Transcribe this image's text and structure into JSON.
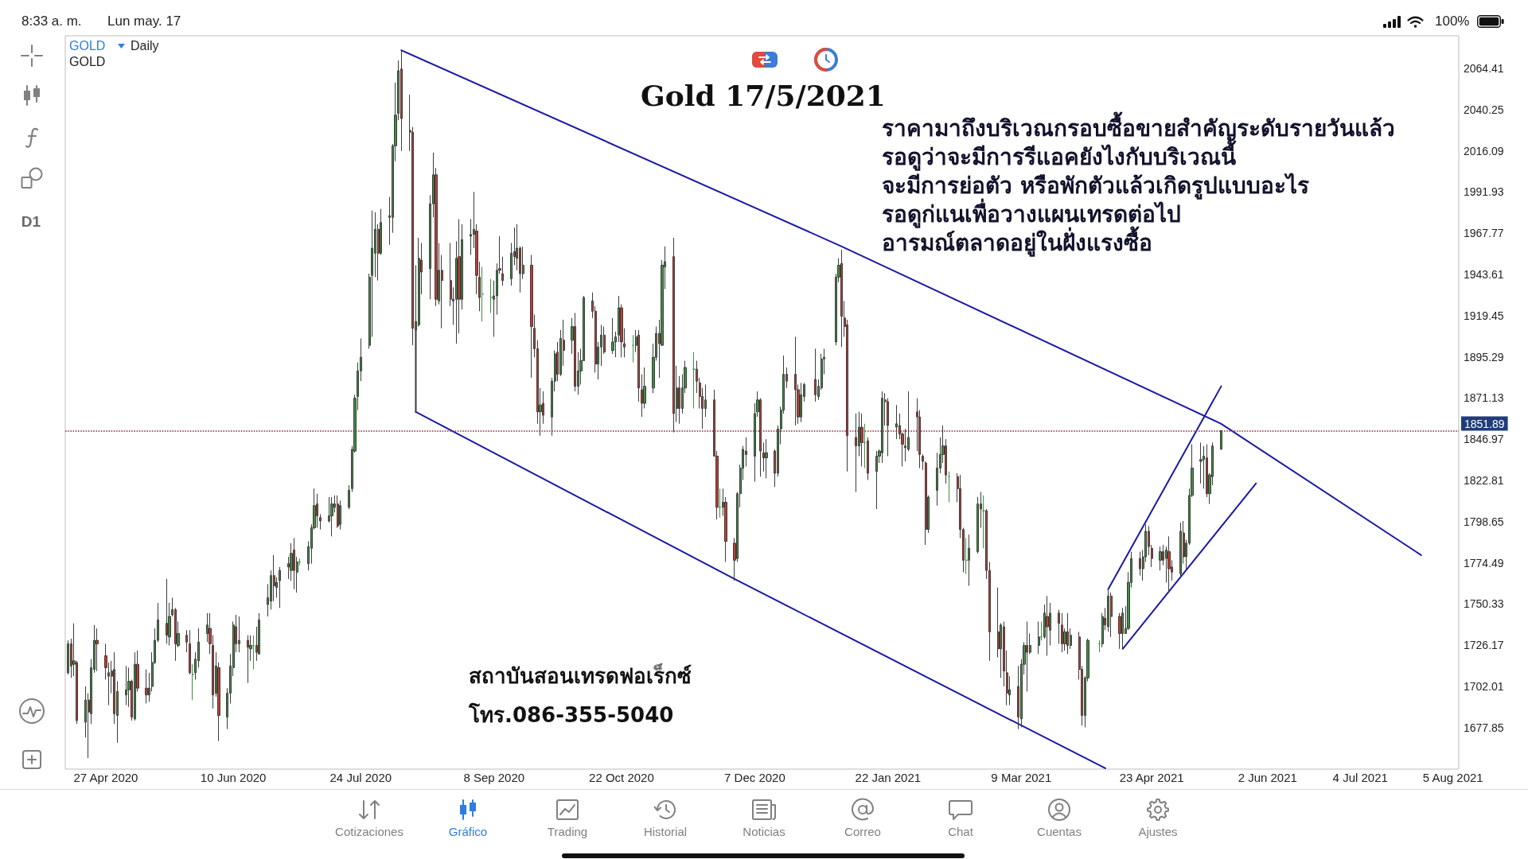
{
  "chart_data": {
    "type": "candlestick",
    "title": "Gold 17/5/2021",
    "annotations": [
      "8:33 a. m.",
      "Lun may. 17",
      "100%",
      "GOLD",
      "Daily",
      "GOLD",
      "D1",
      "ราคามาถึงบริเวณกรอบซื้อขายสำคัญระดับรายวันแล้ว",
      "รอดูว่าจะมีการรีแอคยังไงกับบริเวณนี้",
      "จะมีการย่อตัว หรือพักตัวแล้วเกิดรูปแบบอะไร",
      "รอดูก่แนเพื่อวางแผนเทรดต่อไป",
      "อารมณ์ตลาดอยู่ในฝั่งแรงซื้อ",
      "สถาบันสอนเทรดฟอเร็กซ์",
      "โทร.086-355-5040",
      "Cotizaciones",
      "Gráfico",
      "Trading",
      "Historial",
      "Noticias",
      "Correo",
      "Chat",
      "Cuentas",
      "Ajustes"
    ],
    "x": [
      "2020-04-14",
      "2020-04-15",
      "2020-04-16",
      "2020-04-17",
      "2020-04-20",
      "2020-04-21",
      "2020-04-22",
      "2020-04-23",
      "2020-04-24",
      "2020-04-27",
      "2020-04-28",
      "2020-04-29",
      "2020-04-30",
      "2020-05-01",
      "2020-05-04",
      "2020-05-05",
      "2020-05-06",
      "2020-05-07",
      "2020-05-08",
      "2020-05-11",
      "2020-05-12",
      "2020-05-13",
      "2020-05-14",
      "2020-05-15",
      "2020-05-18",
      "2020-05-19",
      "2020-05-20",
      "2020-05-21",
      "2020-05-22",
      "2020-05-25",
      "2020-05-26",
      "2020-05-27",
      "2020-05-28",
      "2020-05-29",
      "2020-06-01",
      "2020-06-02",
      "2020-06-03",
      "2020-06-04",
      "2020-06-05",
      "2020-06-08",
      "2020-06-09",
      "2020-06-10",
      "2020-06-11",
      "2020-06-12",
      "2020-06-15",
      "2020-06-16",
      "2020-06-17",
      "2020-06-18",
      "2020-06-19",
      "2020-06-22",
      "2020-06-23",
      "2020-06-24",
      "2020-06-25",
      "2020-06-26",
      "2020-06-29",
      "2020-06-30",
      "2020-07-01",
      "2020-07-02",
      "2020-07-03",
      "2020-07-06",
      "2020-07-07",
      "2020-07-08",
      "2020-07-09",
      "2020-07-10",
      "2020-07-13",
      "2020-07-14",
      "2020-07-15",
      "2020-07-16",
      "2020-07-17",
      "2020-07-20",
      "2020-07-21",
      "2020-07-22",
      "2020-07-23",
      "2020-07-24",
      "2020-07-27",
      "2020-07-28",
      "2020-07-29",
      "2020-07-30",
      "2020-07-31",
      "2020-08-03",
      "2020-08-04",
      "2020-08-05",
      "2020-08-06",
      "2020-08-07",
      "2020-08-10",
      "2020-08-11",
      "2020-08-12",
      "2020-08-13",
      "2020-08-14",
      "2020-08-17",
      "2020-08-18",
      "2020-08-19",
      "2020-08-20",
      "2020-08-21",
      "2020-08-24",
      "2020-08-25",
      "2020-08-26",
      "2020-08-27",
      "2020-08-28",
      "2020-08-31",
      "2020-09-01",
      "2020-09-02",
      "2020-09-03",
      "2020-09-04",
      "2020-09-07",
      "2020-09-08",
      "2020-09-09",
      "2020-09-10",
      "2020-09-11",
      "2020-09-14",
      "2020-09-15",
      "2020-09-16",
      "2020-09-17",
      "2020-09-18",
      "2020-09-21",
      "2020-09-22",
      "2020-09-23",
      "2020-09-24",
      "2020-09-25",
      "2020-09-28",
      "2020-09-29",
      "2020-09-30",
      "2020-10-01",
      "2020-10-02",
      "2020-10-05",
      "2020-10-06",
      "2020-10-07",
      "2020-10-08",
      "2020-10-09",
      "2020-10-12",
      "2020-10-13",
      "2020-10-14",
      "2020-10-15",
      "2020-10-16",
      "2020-10-19",
      "2020-10-20",
      "2020-10-21",
      "2020-10-22",
      "2020-10-23",
      "2020-10-26",
      "2020-10-27",
      "2020-10-28",
      "2020-10-29",
      "2020-10-30",
      "2020-11-02",
      "2020-11-03",
      "2020-11-04",
      "2020-11-05",
      "2020-11-06",
      "2020-11-09",
      "2020-11-10",
      "2020-11-11",
      "2020-11-12",
      "2020-11-13",
      "2020-11-16",
      "2020-11-17",
      "2020-11-18",
      "2020-11-19",
      "2020-11-20",
      "2020-11-23",
      "2020-11-24",
      "2020-11-25",
      "2020-11-26",
      "2020-11-27",
      "2020-11-30",
      "2020-12-01",
      "2020-12-02",
      "2020-12-03",
      "2020-12-04",
      "2020-12-07",
      "2020-12-08",
      "2020-12-09",
      "2020-12-10",
      "2020-12-11",
      "2020-12-14",
      "2020-12-15",
      "2020-12-16",
      "2020-12-17",
      "2020-12-18",
      "2020-12-21",
      "2020-12-22",
      "2020-12-23",
      "2020-12-24",
      "2020-12-28",
      "2020-12-29",
      "2020-12-30",
      "2020-12-31",
      "2021-01-04",
      "2021-01-05",
      "2021-01-06",
      "2021-01-07",
      "2021-01-08",
      "2021-01-11",
      "2021-01-12",
      "2021-01-13",
      "2021-01-14",
      "2021-01-15",
      "2021-01-18",
      "2021-01-19",
      "2021-01-20",
      "2021-01-21",
      "2021-01-22",
      "2021-01-25",
      "2021-01-26",
      "2021-01-27",
      "2021-01-28",
      "2021-01-29",
      "2021-02-01",
      "2021-02-02",
      "2021-02-03",
      "2021-02-04",
      "2021-02-05",
      "2021-02-08",
      "2021-02-09",
      "2021-02-10",
      "2021-02-11",
      "2021-02-12",
      "2021-02-15",
      "2021-02-16",
      "2021-02-17",
      "2021-02-18",
      "2021-02-19",
      "2021-02-22",
      "2021-02-23",
      "2021-02-24",
      "2021-02-25",
      "2021-02-26",
      "2021-03-01",
      "2021-03-02",
      "2021-03-03",
      "2021-03-04",
      "2021-03-05",
      "2021-03-08",
      "2021-03-09",
      "2021-03-10",
      "2021-03-11",
      "2021-03-12",
      "2021-03-15",
      "2021-03-16",
      "2021-03-17",
      "2021-03-18",
      "2021-03-19",
      "2021-03-22",
      "2021-03-23",
      "2021-03-24",
      "2021-03-25",
      "2021-03-26",
      "2021-03-29",
      "2021-03-30",
      "2021-03-31",
      "2021-04-01",
      "2021-04-05",
      "2021-04-06",
      "2021-04-07",
      "2021-04-08",
      "2021-04-09",
      "2021-04-12",
      "2021-04-13",
      "2021-04-14",
      "2021-04-15",
      "2021-04-16",
      "2021-04-19",
      "2021-04-20",
      "2021-04-21",
      "2021-04-22",
      "2021-04-23",
      "2021-04-26",
      "2021-04-27",
      "2021-04-28",
      "2021-04-29",
      "2021-04-30",
      "2021-05-03",
      "2021-05-04",
      "2021-05-05",
      "2021-05-06",
      "2021-05-07",
      "2021-05-10",
      "2021-05-11",
      "2021-05-12",
      "2021-05-13",
      "2021-05-14",
      "2021-05-17"
    ],
    "ohlc": [
      [
        1710,
        1729,
        1709,
        1727
      ],
      [
        1727,
        1730,
        1707,
        1714
      ],
      [
        1715,
        1739,
        1708,
        1717
      ],
      [
        1716,
        1717,
        1680,
        1682
      ],
      [
        1681,
        1702,
        1672,
        1694
      ],
      [
        1694,
        1698,
        1660,
        1687
      ],
      [
        1686,
        1718,
        1680,
        1713
      ],
      [
        1712,
        1738,
        1710,
        1729
      ],
      [
        1729,
        1736,
        1711,
        1727
      ],
      [
        1720,
        1727,
        1706,
        1713
      ],
      [
        1710,
        1716,
        1691,
        1708
      ],
      [
        1708,
        1717,
        1698,
        1711
      ],
      [
        1712,
        1722,
        1680,
        1686
      ],
      [
        1685,
        1705,
        1669,
        1699
      ],
      [
        1697,
        1714,
        1691,
        1700
      ],
      [
        1700,
        1713,
        1690,
        1705
      ],
      [
        1705,
        1706,
        1682,
        1684
      ],
      [
        1683,
        1722,
        1682,
        1715
      ],
      [
        1715,
        1723,
        1699,
        1701
      ],
      [
        1701,
        1712,
        1692,
        1697
      ],
      [
        1697,
        1710,
        1693,
        1701
      ],
      [
        1702,
        1722,
        1699,
        1716
      ],
      [
        1716,
        1736,
        1715,
        1729
      ],
      [
        1729,
        1751,
        1728,
        1741
      ],
      [
        1739,
        1765,
        1727,
        1732
      ],
      [
        1731,
        1751,
        1726,
        1743
      ],
      [
        1744,
        1754,
        1743,
        1747
      ],
      [
        1747,
        1748,
        1717,
        1727
      ],
      [
        1726,
        1740,
        1725,
        1733
      ],
      [
        1732,
        1735,
        1722,
        1728
      ],
      [
        1727,
        1735,
        1709,
        1710
      ],
      [
        1709,
        1715,
        1694,
        1709
      ],
      [
        1710,
        1722,
        1706,
        1718
      ],
      [
        1717,
        1736,
        1713,
        1728
      ],
      [
        1733,
        1745,
        1728,
        1738
      ],
      [
        1736,
        1745,
        1721,
        1727
      ],
      [
        1726,
        1732,
        1689,
        1697
      ],
      [
        1698,
        1722,
        1696,
        1714
      ],
      [
        1713,
        1716,
        1670,
        1685
      ],
      [
        1684,
        1701,
        1677,
        1698
      ],
      [
        1698,
        1721,
        1692,
        1714
      ],
      [
        1713,
        1740,
        1708,
        1738
      ],
      [
        1737,
        1744,
        1722,
        1727
      ],
      [
        1727,
        1743,
        1722,
        1729
      ],
      [
        1729,
        1732,
        1704,
        1725
      ],
      [
        1724,
        1732,
        1717,
        1726
      ],
      [
        1726,
        1732,
        1712,
        1726
      ],
      [
        1726,
        1737,
        1717,
        1722
      ],
      [
        1721,
        1745,
        1721,
        1741
      ],
      [
        1750,
        1762,
        1743,
        1754
      ],
      [
        1752,
        1770,
        1747,
        1767
      ],
      [
        1767,
        1779,
        1752,
        1761
      ],
      [
        1760,
        1766,
        1754,
        1763
      ],
      [
        1764,
        1772,
        1748,
        1770
      ],
      [
        1774,
        1778,
        1765,
        1772
      ],
      [
        1770,
        1786,
        1764,
        1780
      ],
      [
        1782,
        1789,
        1759,
        1770
      ],
      [
        1769,
        1778,
        1757,
        1775
      ],
      [
        1775,
        1777,
        1773,
        1775
      ],
      [
        1774,
        1787,
        1770,
        1784
      ],
      [
        1783,
        1797,
        1774,
        1795
      ],
      [
        1795,
        1818,
        1794,
        1808
      ],
      [
        1809,
        1815,
        1795,
        1802
      ],
      [
        1801,
        1803,
        1794,
        1799
      ],
      [
        1799,
        1813,
        1798,
        1802
      ],
      [
        1802,
        1813,
        1790,
        1809
      ],
      [
        1807,
        1814,
        1804,
        1809
      ],
      [
        1809,
        1814,
        1795,
        1796
      ],
      [
        1797,
        1811,
        1794,
        1808
      ],
      [
        1807,
        1820,
        1806,
        1817
      ],
      [
        1818,
        1843,
        1816,
        1841
      ],
      [
        1840,
        1873,
        1839,
        1871
      ],
      [
        1872,
        1892,
        1864,
        1887
      ],
      [
        1887,
        1906,
        1881,
        1895
      ],
      [
        1902,
        1944,
        1900,
        1942
      ],
      [
        1943,
        1981,
        1907,
        1959
      ],
      [
        1956,
        1980,
        1942,
        1970
      ],
      [
        1970,
        1973,
        1940,
        1956
      ],
      [
        1956,
        1982,
        1955,
        1974
      ],
      [
        1978,
        1989,
        1961,
        1977
      ],
      [
        1977,
        2020,
        1968,
        2019
      ],
      [
        2019,
        2056,
        2010,
        2037
      ],
      [
        2038,
        2069,
        2034,
        2063
      ],
      [
        2064,
        2075,
        2016,
        2035
      ],
      [
        2028,
        2049,
        2016,
        2027
      ],
      [
        2027,
        2030,
        1902,
        1912
      ],
      [
        1911,
        1949,
        1902,
        1916
      ],
      [
        1914,
        1965,
        1913,
        1953
      ],
      [
        1952,
        1962,
        1932,
        1945
      ],
      [
        1947,
        1990,
        1929,
        1985
      ],
      [
        1985,
        2015,
        1977,
        2002
      ],
      [
        2002,
        2006,
        1925,
        1929
      ],
      [
        1928,
        1962,
        1926,
        1946
      ],
      [
        1946,
        1955,
        1912,
        1940
      ],
      [
        1940,
        1962,
        1925,
        1929
      ],
      [
        1929,
        1936,
        1914,
        1928
      ],
      [
        1929,
        1963,
        1903,
        1953
      ],
      [
        1954,
        1976,
        1909,
        1929
      ],
      [
        1929,
        1973,
        1923,
        1964
      ],
      [
        1966,
        1976,
        1955,
        1967
      ],
      [
        1967,
        1992,
        1959,
        1970
      ],
      [
        1969,
        1973,
        1932,
        1943
      ],
      [
        1942,
        1951,
        1922,
        1930
      ],
      [
        1932,
        1948,
        1916,
        1932
      ],
      [
        1930,
        1941,
        1921,
        1930
      ],
      [
        1929,
        1940,
        1907,
        1931
      ],
      [
        1931,
        1950,
        1920,
        1946
      ],
      [
        1947,
        1966,
        1944,
        1946
      ],
      [
        1944,
        1954,
        1937,
        1940
      ],
      [
        1941,
        1962,
        1937,
        1956
      ],
      [
        1957,
        1971,
        1949,
        1954
      ],
      [
        1953,
        1973,
        1946,
        1959
      ],
      [
        1959,
        1960,
        1933,
        1944
      ],
      [
        1944,
        1960,
        1941,
        1949
      ],
      [
        1949,
        1955,
        1883,
        1913
      ],
      [
        1912,
        1920,
        1895,
        1900
      ],
      [
        1900,
        1905,
        1856,
        1863
      ],
      [
        1863,
        1877,
        1849,
        1867
      ],
      [
        1868,
        1875,
        1856,
        1861
      ],
      [
        1860,
        1883,
        1849,
        1881
      ],
      [
        1881,
        1899,
        1875,
        1897
      ],
      [
        1898,
        1904,
        1881,
        1885
      ],
      [
        1885,
        1911,
        1884,
        1906
      ],
      [
        1905,
        1917,
        1890,
        1899
      ],
      [
        1905,
        1918,
        1897,
        1913
      ],
      [
        1913,
        1921,
        1875,
        1878
      ],
      [
        1878,
        1898,
        1873,
        1887
      ],
      [
        1887,
        1900,
        1879,
        1893
      ],
      [
        1893,
        1931,
        1893,
        1930
      ],
      [
        1928,
        1933,
        1918,
        1922
      ],
      [
        1922,
        1925,
        1886,
        1891
      ],
      [
        1891,
        1904,
        1882,
        1901
      ],
      [
        1901,
        1914,
        1890,
        1908
      ],
      [
        1908,
        1913,
        1897,
        1898
      ],
      [
        1899,
        1918,
        1897,
        1904
      ],
      [
        1904,
        1910,
        1895,
        1907
      ],
      [
        1908,
        1931,
        1904,
        1924
      ],
      [
        1924,
        1926,
        1895,
        1904
      ],
      [
        1903,
        1912,
        1895,
        1901
      ],
      [
        1902,
        1908,
        1892,
        1902
      ],
      [
        1902,
        1911,
        1898,
        1907
      ],
      [
        1908,
        1911,
        1869,
        1877
      ],
      [
        1876,
        1885,
        1860,
        1868
      ],
      [
        1868,
        1889,
        1865,
        1878
      ],
      [
        1877,
        1903,
        1874,
        1895
      ],
      [
        1895,
        1913,
        1893,
        1909
      ],
      [
        1909,
        1917,
        1883,
        1903
      ],
      [
        1902,
        1952,
        1902,
        1949
      ],
      [
        1948,
        1960,
        1935,
        1951
      ],
      [
        1954,
        1965,
        1851,
        1862
      ],
      [
        1865,
        1890,
        1857,
        1877
      ],
      [
        1877,
        1884,
        1856,
        1865
      ],
      [
        1865,
        1885,
        1862,
        1877
      ],
      [
        1877,
        1893,
        1874,
        1889
      ],
      [
        1888,
        1898,
        1865,
        1888
      ],
      [
        1888,
        1893,
        1874,
        1881
      ],
      [
        1880,
        1883,
        1865,
        1872
      ],
      [
        1872,
        1877,
        1853,
        1865
      ],
      [
        1865,
        1879,
        1860,
        1870
      ],
      [
        1870,
        1876,
        1837,
        1837
      ],
      [
        1837,
        1840,
        1800,
        1807
      ],
      [
        1807,
        1818,
        1801,
        1807
      ],
      [
        1807,
        1818,
        1802,
        1810
      ],
      [
        1810,
        1813,
        1775,
        1787
      ],
      [
        1786,
        1789,
        1764,
        1776
      ],
      [
        1777,
        1816,
        1775,
        1815
      ],
      [
        1815,
        1832,
        1807,
        1830
      ],
      [
        1830,
        1843,
        1823,
        1841
      ],
      [
        1840,
        1848,
        1831,
        1838
      ],
      [
        1837,
        1868,
        1822,
        1862
      ],
      [
        1863,
        1875,
        1860,
        1870
      ],
      [
        1870,
        1871,
        1825,
        1840
      ],
      [
        1839,
        1845,
        1828,
        1836
      ],
      [
        1836,
        1847,
        1824,
        1839
      ],
      [
        1840,
        1841,
        1819,
        1827
      ],
      [
        1827,
        1855,
        1825,
        1853
      ],
      [
        1853,
        1866,
        1844,
        1864
      ],
      [
        1864,
        1896,
        1862,
        1885
      ],
      [
        1885,
        1889,
        1877,
        1881
      ],
      [
        1885,
        1907,
        1855,
        1876
      ],
      [
        1876,
        1879,
        1856,
        1860
      ],
      [
        1860,
        1880,
        1857,
        1873
      ],
      [
        1872,
        1880,
        1869,
        1879
      ],
      [
        1882,
        1900,
        1869,
        1873
      ],
      [
        1872,
        1882,
        1870,
        1878
      ],
      [
        1877,
        1897,
        1876,
        1894
      ],
      [
        1894,
        1900,
        1885,
        1895
      ],
      [
        1904,
        1944,
        1902,
        1942
      ],
      [
        1942,
        1953,
        1939,
        1949
      ],
      [
        1950,
        1958,
        1901,
        1919
      ],
      [
        1918,
        1928,
        1907,
        1913
      ],
      [
        1914,
        1917,
        1828,
        1849
      ],
      [
        1848,
        1862,
        1816,
        1843
      ],
      [
        1843,
        1863,
        1837,
        1854
      ],
      [
        1854,
        1862,
        1831,
        1845
      ],
      [
        1845,
        1856,
        1830,
        1845
      ],
      [
        1846,
        1848,
        1823,
        1827
      ],
      [
        1828,
        1840,
        1806,
        1837
      ],
      [
        1837,
        1841,
        1833,
        1840
      ],
      [
        1839,
        1875,
        1833,
        1871
      ],
      [
        1870,
        1874,
        1855,
        1869
      ],
      [
        1869,
        1871,
        1837,
        1855
      ],
      [
        1854,
        1867,
        1847,
        1856
      ],
      [
        1855,
        1862,
        1847,
        1850
      ],
      [
        1850,
        1851,
        1831,
        1844
      ],
      [
        1843,
        1853,
        1834,
        1842
      ],
      [
        1841,
        1875,
        1840,
        1848
      ],
      [
        1863,
        1871,
        1840,
        1860
      ],
      [
        1860,
        1864,
        1830,
        1838
      ],
      [
        1837,
        1838,
        1829,
        1834
      ],
      [
        1833,
        1834,
        1785,
        1794
      ],
      [
        1794,
        1814,
        1792,
        1813
      ],
      [
        1817,
        1839,
        1808,
        1830
      ],
      [
        1830,
        1848,
        1827,
        1838
      ],
      [
        1838,
        1855,
        1833,
        1843
      ],
      [
        1843,
        1847,
        1821,
        1826
      ],
      [
        1825,
        1828,
        1810,
        1825
      ],
      [
        1825,
        1827,
        1810,
        1818
      ],
      [
        1818,
        1826,
        1789,
        1794
      ],
      [
        1794,
        1795,
        1769,
        1776
      ],
      [
        1776,
        1789,
        1768,
        1776
      ],
      [
        1776,
        1791,
        1761,
        1783
      ],
      [
        1781,
        1813,
        1780,
        1809
      ],
      [
        1809,
        1816,
        1795,
        1806
      ],
      [
        1805,
        1814,
        1783,
        1805
      ],
      [
        1805,
        1806,
        1765,
        1770
      ],
      [
        1770,
        1775,
        1717,
        1734
      ],
      [
        1734,
        1760,
        1719,
        1724
      ],
      [
        1724,
        1739,
        1707,
        1738
      ],
      [
        1737,
        1740,
        1702,
        1711
      ],
      [
        1710,
        1723,
        1691,
        1698
      ],
      [
        1697,
        1708,
        1691,
        1700
      ],
      [
        1702,
        1714,
        1677,
        1684
      ],
      [
        1683,
        1718,
        1678,
        1715
      ],
      [
        1715,
        1728,
        1709,
        1726
      ],
      [
        1726,
        1740,
        1699,
        1722
      ],
      [
        1722,
        1733,
        1721,
        1726
      ],
      [
        1726,
        1740,
        1721,
        1731
      ],
      [
        1731,
        1740,
        1729,
        1731
      ],
      [
        1731,
        1750,
        1730,
        1745
      ],
      [
        1743,
        1755,
        1720,
        1737
      ],
      [
        1735,
        1751,
        1726,
        1745
      ],
      [
        1745,
        1747,
        1727,
        1739
      ],
      [
        1738,
        1745,
        1722,
        1727
      ],
      [
        1727,
        1736,
        1723,
        1734
      ],
      [
        1734,
        1745,
        1721,
        1726
      ],
      [
        1726,
        1736,
        1724,
        1732
      ],
      [
        1731,
        1734,
        1706,
        1712
      ],
      [
        1712,
        1714,
        1679,
        1685
      ],
      [
        1685,
        1708,
        1678,
        1707
      ],
      [
        1707,
        1730,
        1705,
        1729
      ],
      [
        1727,
        1729,
        1722,
        1727
      ],
      [
        1727,
        1745,
        1725,
        1743
      ],
      [
        1742,
        1748,
        1735,
        1738
      ],
      [
        1737,
        1759,
        1734,
        1755
      ],
      [
        1755,
        1757,
        1731,
        1743
      ],
      [
        1743,
        1745,
        1724,
        1733
      ],
      [
        1733,
        1748,
        1724,
        1745
      ],
      [
        1733,
        1749,
        1733,
        1736
      ],
      [
        1736,
        1769,
        1735,
        1763
      ],
      [
        1763,
        1781,
        1760,
        1777
      ],
      [
        1777,
        1781,
        1767,
        1771
      ],
      [
        1771,
        1782,
        1764,
        1778
      ],
      [
        1778,
        1797,
        1775,
        1793
      ],
      [
        1793,
        1796,
        1779,
        1784
      ],
      [
        1783,
        1785,
        1772,
        1777
      ],
      [
        1776,
        1784,
        1770,
        1781
      ],
      [
        1781,
        1785,
        1773,
        1776
      ],
      [
        1777,
        1784,
        1763,
        1782
      ],
      [
        1781,
        1790,
        1757,
        1771
      ],
      [
        1772,
        1776,
        1764,
        1769
      ],
      [
        1768,
        1798,
        1766,
        1793
      ],
      [
        1792,
        1799,
        1774,
        1778
      ],
      [
        1778,
        1788,
        1770,
        1786
      ],
      [
        1786,
        1818,
        1785,
        1814
      ],
      [
        1814,
        1844,
        1813,
        1830
      ],
      [
        1834,
        1845,
        1821,
        1835
      ],
      [
        1835,
        1843,
        1818,
        1837
      ],
      [
        1836,
        1844,
        1813,
        1815
      ],
      [
        1815,
        1827,
        1809,
        1826
      ],
      [
        1825,
        1845,
        1820,
        1843
      ],
      [
        1841,
        1852,
        1841,
        1852
      ]
    ],
    "colors": [
      "#3d9140",
      "#c53a32",
      "#3d9140",
      "#c53a32",
      "#3d9140",
      "#c53a32",
      "#3d9140",
      "#3d9140",
      "#c53a32",
      "#c53a32",
      "#c53a32",
      "#3d9140",
      "#c53a32",
      "#3d9140",
      "#3d9140",
      "#3d9140",
      "#c53a32",
      "#3d9140",
      "#c53a32",
      "#c53a32",
      "#3d9140",
      "#3d9140",
      "#3d9140",
      "#3d9140",
      "#c53a32",
      "#3d9140",
      "#3d9140",
      "#c53a32",
      "#3d9140",
      "#c53a32",
      "#c53a32",
      "#3d9140",
      "#3d9140",
      "#3d9140",
      "#3d9140",
      "#c53a32",
      "#c53a32",
      "#3d9140",
      "#c53a32",
      "#3d9140",
      "#3d9140",
      "#3d9140",
      "#c53a32",
      "#3d9140",
      "#c53a32",
      "#3d9140",
      "#3d9140",
      "#c53a32",
      "#3d9140",
      "#3d9140",
      "#3d9140",
      "#c53a32",
      "#3d9140",
      "#3d9140",
      "#c53a32",
      "#3d9140",
      "#c53a32",
      "#3d9140",
      "#3d9140",
      "#3d9140",
      "#3d9140",
      "#3d9140",
      "#c53a32",
      "#c53a32",
      "#3d9140",
      "#3d9140",
      "#3d9140",
      "#c53a32",
      "#3d9140",
      "#3d9140",
      "#3d9140",
      "#3d9140",
      "#3d9140",
      "#3d9140",
      "#3d9140",
      "#3d9140",
      "#3d9140",
      "#c53a32",
      "#3d9140",
      "#c53a32",
      "#3d9140",
      "#3d9140",
      "#3d9140",
      "#c53a32",
      "#c53a32",
      "#c53a32",
      "#3d9140",
      "#3d9140",
      "#c53a32",
      "#3d9140",
      "#3d9140",
      "#c53a32",
      "#3d9140",
      "#c53a32",
      "#c53a32",
      "#c53a32",
      "#3d9140",
      "#c53a32",
      "#3d9140",
      "#3d9140",
      "#3d9140",
      "#c53a32",
      "#c53a32",
      "#3d9140",
      "#3d9140",
      "#3d9140",
      "#3d9140",
      "#c53a32",
      "#c53a32",
      "#3d9140",
      "#c53a32",
      "#3d9140",
      "#c53a32",
      "#3d9140",
      "#c53a32",
      "#c53a32",
      "#c53a32",
      "#3d9140",
      "#c53a32",
      "#3d9140",
      "#3d9140",
      "#c53a32",
      "#3d9140",
      "#c53a32",
      "#3d9140",
      "#c53a32",
      "#3d9140",
      "#3d9140",
      "#3d9140",
      "#c53a32",
      "#c53a32",
      "#3d9140",
      "#3d9140",
      "#c53a32",
      "#3d9140",
      "#3d9140",
      "#3d9140",
      "#c53a32",
      "#c53a32",
      "#3d9140",
      "#3d9140",
      "#c53a32",
      "#c53a32",
      "#3d9140",
      "#3d9140",
      "#3d9140",
      "#c53a32",
      "#3d9140",
      "#3d9140",
      "#c53a32",
      "#3d9140",
      "#c53a32",
      "#3d9140",
      "#3d9140",
      "#3d9140",
      "#c53a32",
      "#c53a32",
      "#c53a32",
      "#3d9140",
      "#c53a32",
      "#c53a32",
      "#3d9140",
      "#3d9140",
      "#c53a32",
      "#c53a32",
      "#3d9140",
      "#3d9140",
      "#3d9140",
      "#c53a32",
      "#3d9140",
      "#3d9140",
      "#c53a32",
      "#c53a32",
      "#3d9140",
      "#c53a32",
      "#3d9140",
      "#3d9140",
      "#3d9140",
      "#c53a32",
      "#c53a32",
      "#c53a32",
      "#3d9140",
      "#3d9140",
      "#c53a32",
      "#3d9140",
      "#3d9140",
      "#3d9140",
      "#3d9140",
      "#3d9140",
      "#c53a32",
      "#c53a32",
      "#c53a32",
      "#c53a32",
      "#3d9140",
      "#c53a32",
      "#3d9140",
      "#c53a32",
      "#3d9140",
      "#3d9140",
      "#3d9140",
      "#c53a32",
      "#c53a32",
      "#3d9140",
      "#c53a32",
      "#c53a32",
      "#c53a32",
      "#3d9140",
      "#c53a32",
      "#c53a32",
      "#c53a32",
      "#c53a32",
      "#3d9140",
      "#3d9140",
      "#3d9140",
      "#3d9140",
      "#c53a32",
      "#3d9140",
      "#c53a32",
      "#c53a32",
      "#c53a32",
      "#3d9140",
      "#3d9140",
      "#3d9140",
      "#c53a32",
      "#3d9140",
      "#c53a32",
      "#c53a32",
      "#c53a32",
      "#3d9140",
      "#c53a32",
      "#c53a32",
      "#3d9140",
      "#c53a32",
      "#3d9140",
      "#3d9140",
      "#c53a32",
      "#3d9140",
      "#3d9140",
      "#3d9140",
      "#3d9140",
      "#c53a32",
      "#3d9140",
      "#c53a32",
      "#c53a32",
      "#3d9140",
      "#c53a32",
      "#3d9140",
      "#c53a32",
      "#c53a32",
      "#3d9140",
      "#3d9140",
      "#3d9140",
      "#3d9140",
      "#c53a32",
      "#3d9140",
      "#c53a32",
      "#c53a32",
      "#3d9140",
      "#3d9140",
      "#3d9140",
      "#3d9140",
      "#c53a32",
      "#3d9140",
      "#3d9140",
      "#c53a32",
      "#c53a32",
      "#3d9140",
      "#c53a32",
      "#3d9140",
      "#c53a32",
      "#c53a32",
      "#3d9140",
      "#c53a32",
      "#3d9140",
      "#3d9140",
      "#3d9140",
      "#3d9140",
      "#3d9140",
      "#c53a32",
      "#3d9140",
      "#3d9140",
      "#3d9140"
    ],
    "series": [
      {
        "type": "line",
        "color": "#1a1aa6",
        "x": [
          "2020-08-07",
          "2021-01-06",
          "2021-05-17",
          "2021-07-25"
        ],
        "values": [
          2075,
          1960,
          1856,
          1779
        ]
      },
      {
        "type": "line",
        "color": "#3a3a3a",
        "x": [
          "2020-08-12",
          "2020-08-12"
        ],
        "values": [
          1911,
          1863
        ]
      },
      {
        "type": "line",
        "color": "#1a1aa6",
        "x": [
          "2020-08-12",
          "2020-11-30",
          "2021-03-08",
          "2021-04-07"
        ],
        "values": [
          1863,
          1765,
          1680,
          1654
        ]
      },
      {
        "type": "line",
        "color": "#1a1aa6",
        "x": [
          "2021-04-08",
          "2021-05-17"
        ],
        "values": [
          1759,
          1878
        ]
      },
      {
        "type": "line",
        "color": "#1a1aa6",
        "x": [
          "2021-04-13",
          "2021-05-29"
        ],
        "values": [
          1724,
          1821
        ]
      }
    ],
    "xlim": [
      "2020-04-13",
      "2021-08-07"
    ],
    "xticks": [
      {
        "value": "2020-04-27",
        "label": "27 Apr 2020"
      },
      {
        "value": "2020-06-10",
        "label": "10 Jun 2020"
      },
      {
        "value": "2020-07-24",
        "label": "24 Jul 2020"
      },
      {
        "value": "2020-09-08",
        "label": "8 Sep 2020"
      },
      {
        "value": "2020-10-22",
        "label": "22 Oct 2020"
      },
      {
        "value": "2020-12-07",
        "label": "7 Dec 2020"
      },
      {
        "value": "2021-01-22",
        "label": "22 Jan 2021"
      },
      {
        "value": "2021-03-09",
        "label": "9 Mar 2021"
      },
      {
        "value": "2021-04-23",
        "label": "23 Apr 2021"
      },
      {
        "value": "2021-06-02",
        "label": "2 Jun 2021"
      },
      {
        "value": "2021-07-04",
        "label": "4 Jul 2021"
      },
      {
        "value": "2021-08-05",
        "label": "5 Aug 2021"
      }
    ],
    "ylim": [
      1653.5,
      2083.5
    ],
    "yticks": [
      1677.85,
      1702.01,
      1726.17,
      1750.33,
      1774.49,
      1798.65,
      1822.81,
      1846.97,
      1871.13,
      1895.29,
      1919.45,
      1943.61,
      1967.77,
      1991.93,
      2016.09,
      2040.25,
      2064.41
    ],
    "ref_lines": [
      {
        "axis": "y",
        "value": 1851.89,
        "label": "1851.89",
        "color": "#8b2d3a",
        "line_style": "dotted"
      }
    ]
  }
}
